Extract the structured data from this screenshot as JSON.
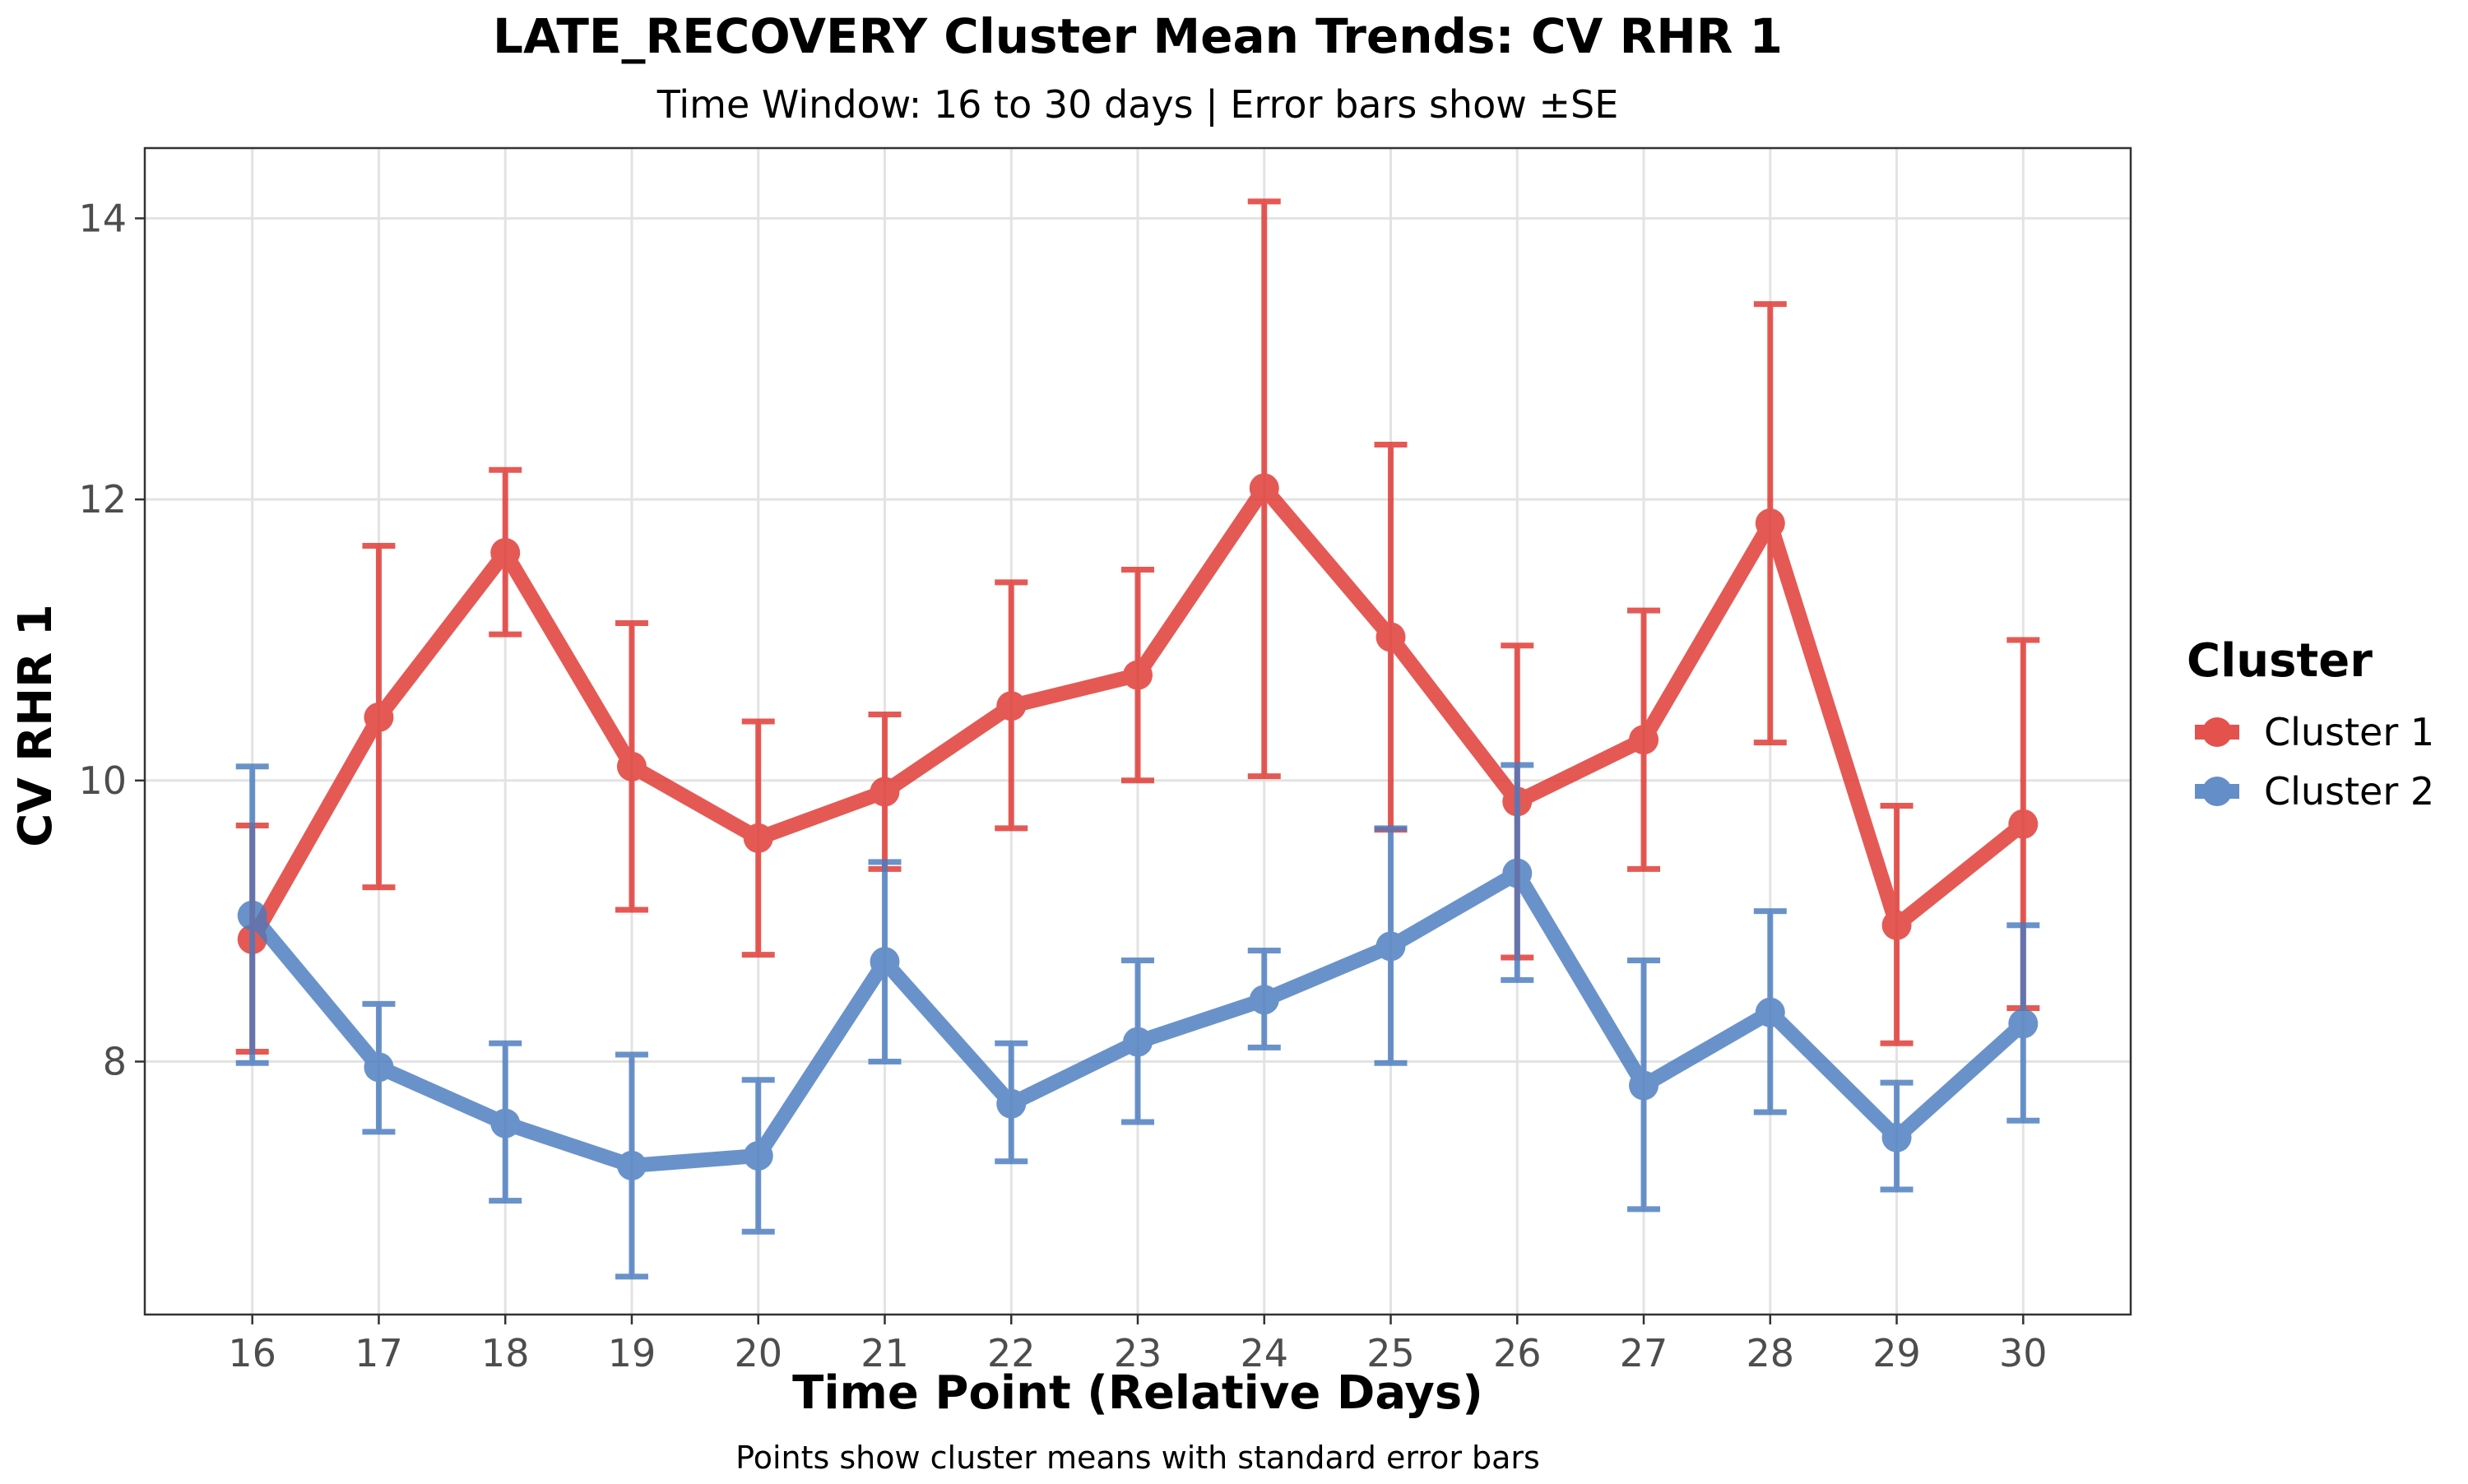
{
  "chart_data": {
    "type": "line",
    "title": "LATE_RECOVERY Cluster Mean Trends: CV RHR 1",
    "subtitle": "Time Window: 16 to 30 days | Error bars show ±SE",
    "caption": "Points show cluster means with standard error bars",
    "xlabel": "Time Point (Relative Days)",
    "ylabel": "CV RHR 1",
    "x": [
      16,
      17,
      18,
      19,
      20,
      21,
      22,
      23,
      24,
      25,
      26,
      27,
      28,
      29,
      30
    ],
    "x_ticks": [
      "16",
      "17",
      "18",
      "19",
      "20",
      "21",
      "22",
      "23",
      "24",
      "25",
      "26",
      "27",
      "28",
      "29",
      "30"
    ],
    "xlim": [
      15.15,
      30.85
    ],
    "ylim": [
      6.2,
      14.5
    ],
    "y_ticks": [
      8,
      10,
      12,
      14
    ],
    "y_tick_labels": [
      "8",
      "10",
      "12",
      "14"
    ],
    "grid": true,
    "legend": {
      "title": "Cluster",
      "placement": "right"
    },
    "series": [
      {
        "name": "Cluster 1",
        "color": "#e03530",
        "values": [
          8.87,
          10.45,
          11.62,
          10.1,
          9.59,
          9.92,
          10.53,
          10.75,
          12.08,
          11.02,
          9.85,
          10.29,
          11.83,
          8.97,
          9.69
        ],
        "lower": [
          8.07,
          9.24,
          11.04,
          9.08,
          8.76,
          9.37,
          9.66,
          10.0,
          10.03,
          9.65,
          8.74,
          9.37,
          10.27,
          8.13,
          8.38
        ],
        "upper": [
          9.68,
          11.67,
          12.21,
          11.12,
          10.42,
          10.47,
          11.41,
          11.5,
          14.12,
          12.39,
          10.96,
          11.21,
          13.39,
          9.82,
          11.0
        ]
      },
      {
        "name": "Cluster 2",
        "color": "#4a7bbf",
        "values": [
          9.04,
          7.96,
          7.56,
          7.26,
          7.33,
          8.71,
          7.7,
          8.14,
          8.44,
          8.82,
          9.34,
          7.83,
          8.35,
          7.46,
          8.27
        ],
        "lower": [
          7.99,
          7.5,
          7.01,
          6.47,
          6.79,
          8.0,
          7.29,
          7.57,
          8.1,
          7.99,
          8.58,
          6.95,
          7.64,
          7.09,
          7.58
        ],
        "upper": [
          10.1,
          8.41,
          8.13,
          8.05,
          7.87,
          9.42,
          8.13,
          8.72,
          8.79,
          9.66,
          10.11,
          8.72,
          9.07,
          7.85,
          8.97
        ]
      }
    ]
  }
}
